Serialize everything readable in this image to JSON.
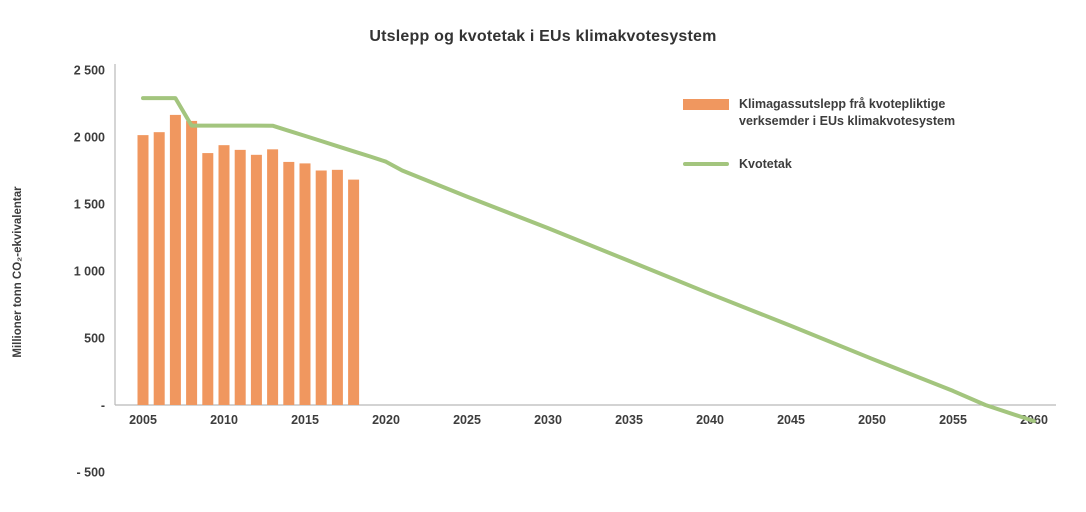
{
  "chart_data": {
    "type": "bar",
    "title": "Utslepp og kvotetak i EUs klimakvotesystem",
    "ylabel": "Millioner tonn CO₂-ekvivalentar",
    "ylim": [
      -500,
      2500
    ],
    "grid": false,
    "legend_position": "right",
    "colors": {
      "bar": "#F0975F",
      "line": "#A3C57E",
      "axis": "#b9b9b9",
      "text": "#3d3d3d"
    },
    "y_ticks": [
      {
        "value": 2500,
        "label": "2 500"
      },
      {
        "value": 2000,
        "label": "2 000"
      },
      {
        "value": 1500,
        "label": "1 500"
      },
      {
        "value": 1000,
        "label": "1 000"
      },
      {
        "value": 500,
        "label": "500"
      },
      {
        "value": 0,
        "label": "-"
      },
      {
        "value": -500,
        "label": "- 500"
      }
    ],
    "x_ticks": [
      2005,
      2010,
      2015,
      2020,
      2025,
      2030,
      2035,
      2040,
      2045,
      2050,
      2055,
      2060
    ],
    "bars": {
      "name": "Klimagassutslepp frå kvotepliktige verksemder i EUs klimakvotesystem",
      "years": [
        2005,
        2006,
        2007,
        2008,
        2009,
        2010,
        2011,
        2012,
        2013,
        2014,
        2015,
        2016,
        2017,
        2018
      ],
      "values": [
        2014,
        2036,
        2165,
        2120,
        1880,
        1939,
        1904,
        1867,
        1908,
        1814,
        1803,
        1750,
        1755,
        1682
      ]
    },
    "line": {
      "name": "Kvotetak",
      "points": [
        [
          2005,
          2290
        ],
        [
          2006,
          2290
        ],
        [
          2007,
          2290
        ],
        [
          2008,
          2085
        ],
        [
          2009,
          2085
        ],
        [
          2010,
          2085
        ],
        [
          2011,
          2085
        ],
        [
          2012,
          2085
        ],
        [
          2013,
          2084
        ],
        [
          2014,
          2046
        ],
        [
          2015,
          2008
        ],
        [
          2016,
          1970
        ],
        [
          2017,
          1931
        ],
        [
          2018,
          1893
        ],
        [
          2019,
          1855
        ],
        [
          2020,
          1816
        ],
        [
          2021,
          1750
        ],
        [
          2025,
          1555
        ],
        [
          2030,
          1320
        ],
        [
          2035,
          1075
        ],
        [
          2040,
          830
        ],
        [
          2045,
          590
        ],
        [
          2050,
          345
        ],
        [
          2055,
          105
        ],
        [
          2057,
          0
        ],
        [
          2060,
          -120
        ]
      ]
    },
    "legend": [
      {
        "label": "Klimagassutslepp frå kvotepliktige verksemder i EUs klimakvotesystem",
        "swatch": "bar"
      },
      {
        "label": "Kvotetak",
        "swatch": "line"
      }
    ]
  }
}
